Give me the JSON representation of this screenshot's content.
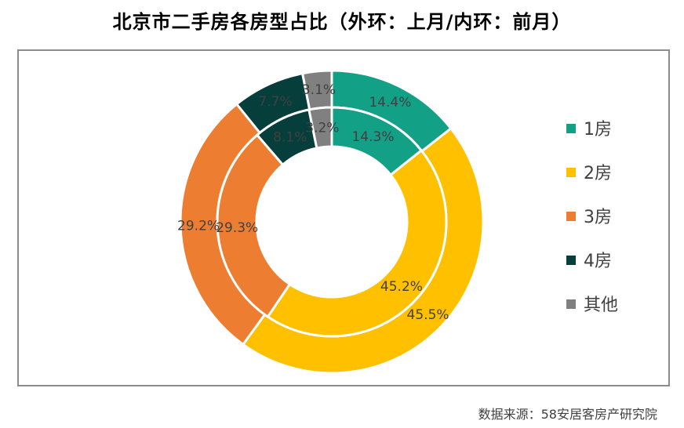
{
  "chart_data": {
    "type": "pie",
    "subtype": "double-donut",
    "title": "北京市二手房各房型占比（外环：上月/内环：前月）",
    "categories": [
      "1房",
      "2房",
      "3房",
      "4房",
      "其他"
    ],
    "colors": [
      "#12a086",
      "#ffc000",
      "#ed7d31",
      "#063e3b",
      "#808080"
    ],
    "series": [
      {
        "name": "外环：上月",
        "ring": "outer",
        "values": [
          14.4,
          45.5,
          29.2,
          7.7,
          3.1
        ],
        "labels": [
          "14.4%",
          "45.5%",
          "29.2%",
          "7.7%",
          "3.1%"
        ]
      },
      {
        "name": "内环：前月",
        "ring": "inner",
        "values": [
          14.3,
          45.2,
          29.3,
          8.1,
          3.2
        ],
        "labels": [
          "14.3%",
          "45.2%",
          "29.3%",
          "8.1%",
          "3.2%"
        ]
      }
    ],
    "legend_position": "right"
  },
  "source": "数据来源：58安居客房产研究院"
}
